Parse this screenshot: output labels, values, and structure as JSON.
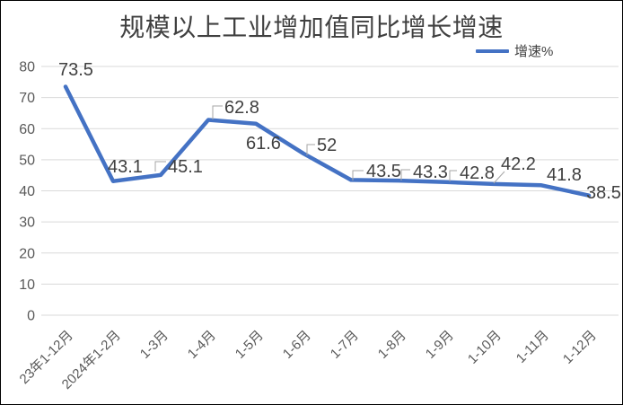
{
  "chart": {
    "title": "规模以上工业增加值同比增长增速",
    "legend_label": "增速%",
    "colors": {
      "line": "#4472C4",
      "gridline": "#D9D9D9",
      "leader": "#A6A6A6",
      "data_label": "#404040",
      "axis_label": "#595959",
      "title": "#404040"
    }
  },
  "chart_data": {
    "type": "line",
    "title": "规模以上工业增加值同比增长增速",
    "categories": [
      "23年1-12月",
      "2024年1-2月",
      "1-3月",
      "1-4月",
      "1-5月",
      "1-6月",
      "1-7月",
      "1-8月",
      "1-9月",
      "1-10月",
      "1-11月",
      "1-12月"
    ],
    "series": [
      {
        "name": "增速%",
        "values": [
          73.5,
          43.1,
          45.1,
          62.8,
          61.6,
          52,
          43.5,
          43.3,
          42.8,
          42.2,
          41.8,
          38.5
        ]
      }
    ],
    "data_labels": [
      "73.5",
      "43.1",
      "45.1",
      "62.8",
      "61.6",
      "52",
      "43.5",
      "43.3",
      "42.8",
      "42.2",
      "41.8",
      "38.5"
    ],
    "xlabel": "",
    "ylabel": "",
    "ylim": [
      0,
      80
    ],
    "ytick_step": 10,
    "yticks": [
      0,
      10,
      20,
      30,
      40,
      50,
      60,
      70,
      80
    ],
    "grid": true,
    "legend_position": "top-right"
  }
}
